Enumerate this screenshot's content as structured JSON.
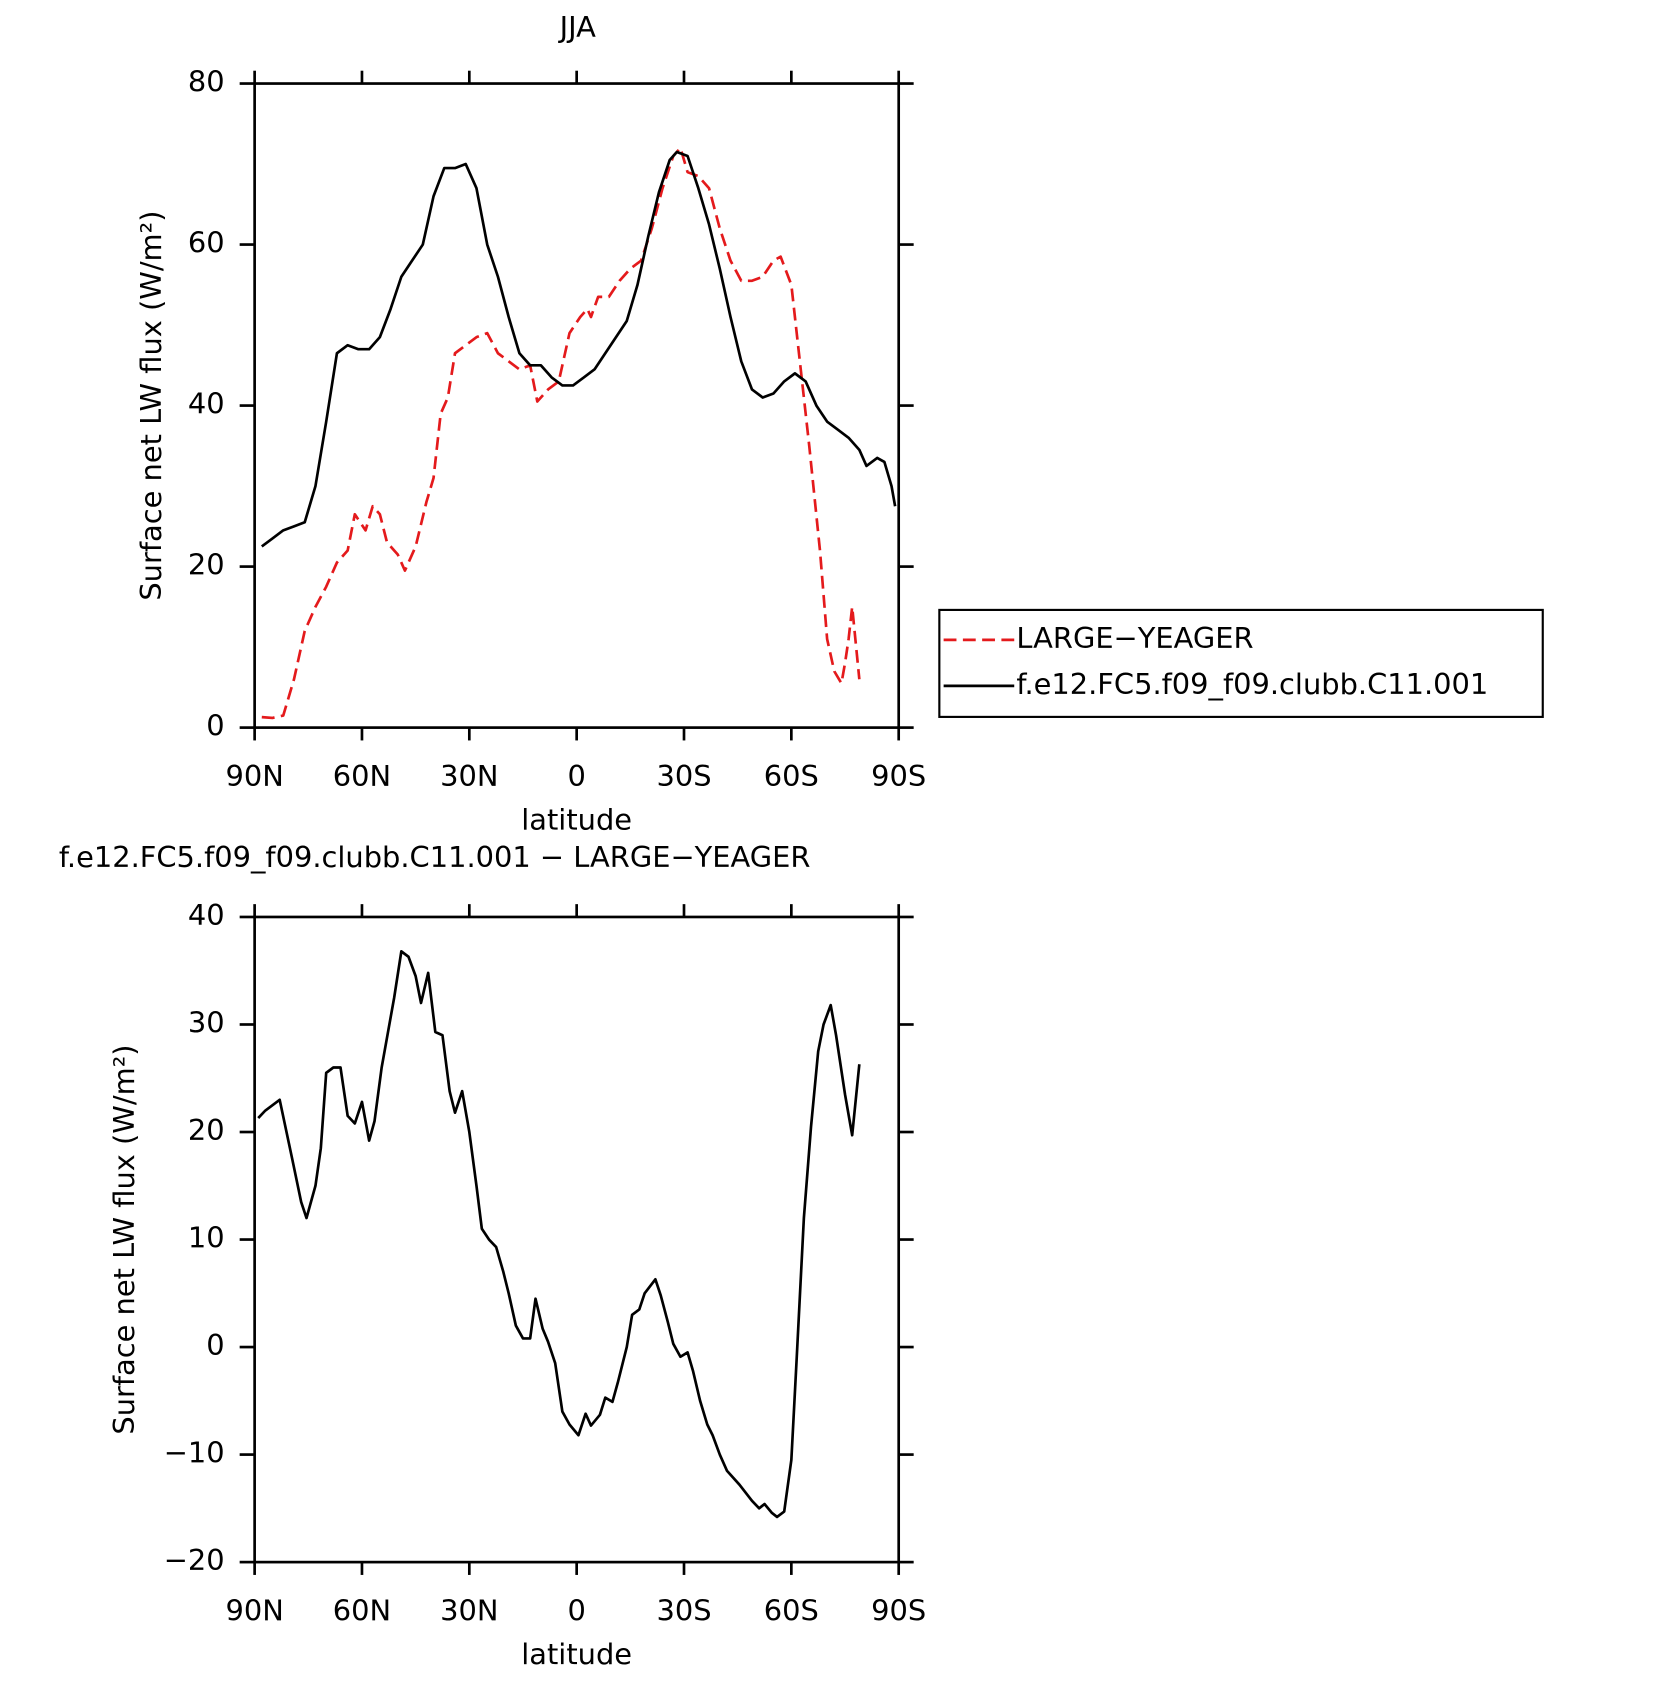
{
  "chart_data": [
    {
      "type": "line",
      "title": "JJA",
      "xlabel": "latitude",
      "ylabel": "Surface net LW flux (W/m²)",
      "xlim": [
        90,
        -90
      ],
      "xticks": [
        {
          "value": 90,
          "label": "90N"
        },
        {
          "value": 60,
          "label": "60N"
        },
        {
          "value": 30,
          "label": "30N"
        },
        0,
        {
          "value": -30,
          "label": "30S"
        },
        {
          "value": -60,
          "label": "60S"
        },
        {
          "value": -90,
          "label": "90S"
        }
      ],
      "ylim": [
        0,
        80
      ],
      "yticks": [
        0,
        20,
        40,
        60,
        80
      ],
      "legend": "outside-right",
      "series": [
        {
          "name": "LARGE−YEAGER",
          "color": "#e41a1c",
          "dash": true,
          "x": [
            88,
            85,
            82,
            79,
            76,
            73,
            70,
            67,
            64,
            62,
            59,
            57,
            55,
            53,
            50,
            48,
            45,
            42,
            40,
            38,
            36,
            34,
            31,
            28,
            25,
            22,
            19,
            16,
            13,
            11,
            8,
            5,
            2,
            -1,
            -3,
            -4,
            -6,
            -9,
            -12,
            -15,
            -18,
            -21,
            -24,
            -27,
            -29,
            -31,
            -34,
            -37,
            -40,
            -43,
            -46,
            -49,
            -52,
            -55,
            -57,
            -60,
            -62,
            -65,
            -68,
            -70,
            -72,
            -74,
            -75,
            -76,
            -77,
            -79
          ],
          "values": [
            1.3,
            1.2,
            1.5,
            6,
            12,
            15,
            17.5,
            20.5,
            22,
            26.5,
            24.5,
            27.5,
            26.5,
            23,
            21.5,
            19.5,
            22.5,
            28,
            31,
            39,
            41,
            46.5,
            47.5,
            48.5,
            49,
            46.5,
            45.5,
            44.5,
            45,
            40.5,
            42,
            43,
            49,
            51,
            52,
            51,
            53.5,
            53.5,
            55.5,
            57,
            58,
            62,
            67,
            71,
            72,
            69,
            68.5,
            67,
            62,
            58,
            55.5,
            55.5,
            56,
            58,
            58.5,
            55,
            47,
            35,
            22,
            11,
            7,
            5.5,
            8,
            11,
            15,
            6
          ]
        },
        {
          "name": "f.e12.FC5.f09_f09.clubb.C11.001",
          "color": "#000000",
          "dash": false,
          "x": [
            88,
            85,
            82,
            79,
            76,
            73,
            70,
            67,
            64,
            61,
            58,
            55,
            52,
            49,
            46,
            43,
            40,
            37,
            34,
            31,
            28,
            25,
            22,
            19,
            16,
            13,
            10,
            7,
            4,
            1,
            -2,
            -5,
            -8,
            -11,
            -14,
            -17,
            -20,
            -23,
            -26,
            -28,
            -31,
            -34,
            -37,
            -40,
            -43,
            -46,
            -49,
            -52,
            -55,
            -58,
            -61,
            -64,
            -67,
            -70,
            -73,
            -76,
            -79,
            -81,
            -84,
            -86,
            -88,
            -89
          ],
          "values": [
            22.5,
            23.5,
            24.5,
            25,
            25.5,
            30,
            38,
            46.5,
            47.5,
            47,
            47,
            48.5,
            52,
            56,
            58,
            60,
            66,
            69.5,
            69.5,
            70,
            67,
            60,
            56,
            51,
            46.5,
            45,
            45,
            43.5,
            42.5,
            42.5,
            43.5,
            44.5,
            46.5,
            48.5,
            50.5,
            55,
            61,
            66.5,
            70.5,
            71.5,
            71,
            67,
            62.5,
            57,
            51,
            45.5,
            42,
            41,
            41.5,
            43,
            44,
            43,
            40,
            38,
            37,
            36,
            34.5,
            32.5,
            33.5,
            33,
            30,
            27.5
          ]
        }
      ]
    },
    {
      "type": "line",
      "title": "f.e12.FC5.f09_f09.clubb.C11.001 − LARGE−YEAGER",
      "xlabel": "latitude",
      "ylabel": "Surface net LW flux (W/m²)",
      "xlim": [
        90,
        -90
      ],
      "xticks": [
        {
          "value": 90,
          "label": "90N"
        },
        {
          "value": 60,
          "label": "60N"
        },
        {
          "value": 30,
          "label": "30N"
        },
        0,
        {
          "value": -30,
          "label": "30S"
        },
        {
          "value": -60,
          "label": "60S"
        },
        {
          "value": -90,
          "label": "90S"
        }
      ],
      "ylim": [
        -20,
        40
      ],
      "yticks": [
        {
          "value": -20,
          "label": "−20"
        },
        {
          "value": -10,
          "label": "−10"
        },
        0,
        10,
        20,
        30,
        40
      ],
      "series": [
        {
          "color": "#000000",
          "dash": false,
          "x": [
            89,
            87,
            83,
            79.5,
            77,
            75.5,
            73,
            71.5,
            70,
            68,
            66,
            64,
            62,
            60,
            58,
            56.5,
            54.5,
            51,
            49,
            47,
            45,
            43.5,
            41.5,
            39.5,
            37.5,
            35.5,
            34,
            32,
            30,
            28,
            26.5,
            24.5,
            22.5,
            20.5,
            19,
            17,
            15,
            13,
            11.5,
            9.5,
            8,
            6,
            4,
            2,
            -0.5,
            -2.5,
            -4,
            -6.5,
            -8,
            -10,
            -11.5,
            -14,
            -15.5,
            -17.5,
            -19,
            -22,
            -23.5,
            -25.5,
            -27,
            -29,
            -31,
            -32.5,
            -34.5,
            -36.5,
            -38,
            -40,
            -42,
            -45.5,
            -49,
            -51,
            -52.5,
            -54.5,
            -56,
            -58,
            -60,
            -61.5,
            -63.5,
            -65.5,
            -67.5,
            -69,
            -71,
            -72.5,
            -75,
            -77,
            -79
          ],
          "values": [
            21.3,
            22,
            23,
            17.5,
            13.5,
            12,
            15,
            18.5,
            25.5,
            26,
            26,
            21.5,
            20.8,
            22.8,
            19.2,
            21,
            26,
            32.5,
            36.8,
            36.3,
            34.5,
            32,
            34.8,
            29.3,
            29,
            23.8,
            21.8,
            23.8,
            20,
            15,
            11,
            10,
            9.3,
            7,
            5,
            2,
            0.8,
            0.8,
            4.5,
            1.7,
            0.5,
            -1.5,
            -6,
            -7.2,
            -8.2,
            -6.2,
            -7.3,
            -6.3,
            -4.7,
            -5.1,
            -3.3,
            0,
            3,
            3.5,
            5,
            6.3,
            4.8,
            2.3,
            0.3,
            -0.9,
            -0.5,
            -2.2,
            -5,
            -7.2,
            -8.2,
            -10,
            -11.5,
            -12.8,
            -14.3,
            -15,
            -14.6,
            -15.4,
            -15.8,
            -15.3,
            -10.5,
            -1,
            12,
            20.5,
            27.5,
            30,
            31.8,
            29,
            23.5,
            19.7,
            26.3
          ]
        }
      ]
    }
  ]
}
